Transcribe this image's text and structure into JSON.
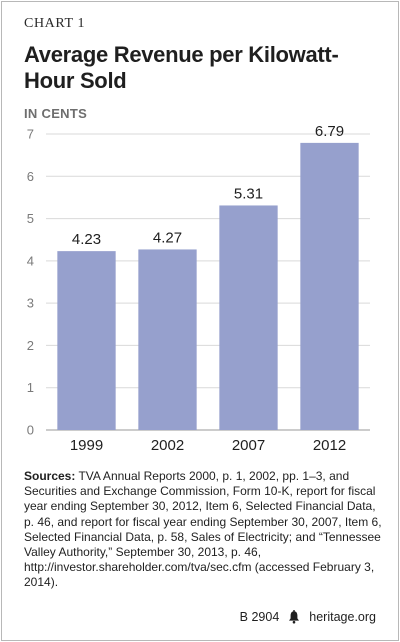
{
  "header": {
    "kicker": "CHART 1",
    "title": "Average Revenue per Kilowatt-Hour Sold"
  },
  "chart_data": {
    "type": "bar",
    "title": "Average Revenue per Kilowatt-Hour Sold",
    "ylabel": "IN CENTS",
    "xlabel": "",
    "categories": [
      "1999",
      "2002",
      "2007",
      "2012"
    ],
    "values": [
      4.23,
      4.27,
      5.31,
      6.79
    ],
    "value_labels": [
      "4.23",
      "4.27",
      "5.31",
      "6.79"
    ],
    "ylim": [
      0,
      7
    ],
    "yticks": [
      0,
      1,
      2,
      3,
      4,
      5,
      6,
      7
    ],
    "grid": true,
    "legend": "none",
    "bar_color": "#96a0cd",
    "grid_color": "#d9d9d9"
  },
  "notes": {
    "sources_label": "Sources:",
    "sources_text": " TVA Annual Reports 2000, p. 1, 2002, pp. 1–3, and Securities and Exchange Commission, Form 10-K, report for fiscal year ending September 30, 2012, Item 6, Selected Financial Data, p. 46, and report for fiscal year ending September 30, 2007, Item 6, Selected Financial Data, p. 58, Sales of Electricity; and “Tennessee Valley Authority,” September 30, 2013, p. 46, http://investor.shareholder.com/tva/sec.cfm (accessed February 3, 2014)."
  },
  "footer": {
    "code": "B 2904",
    "site": "heritage.org",
    "icon": "liberty-bell-icon"
  }
}
